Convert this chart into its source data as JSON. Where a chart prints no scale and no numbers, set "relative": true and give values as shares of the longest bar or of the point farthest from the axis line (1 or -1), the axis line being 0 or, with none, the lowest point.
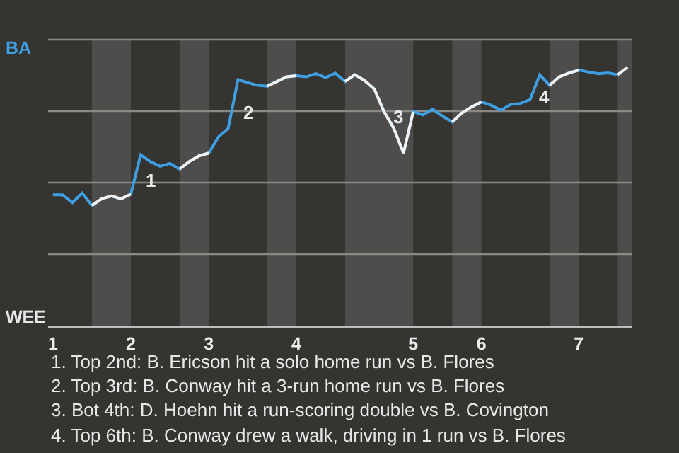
{
  "chart_data": {
    "type": "line",
    "relative": true,
    "categories": [
      "1",
      null,
      null,
      null,
      null,
      null,
      null,
      null,
      "2",
      null,
      null,
      null,
      null,
      null,
      null,
      null,
      "3",
      null,
      null,
      null,
      null,
      null,
      null,
      null,
      null,
      "4",
      null,
      null,
      null,
      null,
      null,
      null,
      null,
      null,
      null,
      null,
      null,
      "5",
      null,
      null,
      null,
      null,
      null,
      null,
      "6",
      null,
      null,
      null,
      null,
      null,
      null,
      null,
      null,
      null,
      "7",
      null,
      null,
      null,
      null,
      null
    ],
    "series": [
      {
        "color": "#3f9fe3",
        "values": [
          0.506,
          0.506,
          0.476,
          0.513,
          0.465,
          0.491,
          0.502,
          0.491,
          0.509,
          0.661,
          0.635,
          0.617,
          0.628,
          0.606,
          0.635,
          0.657,
          0.668,
          0.731,
          0.764,
          0.952,
          0.941,
          0.93,
          0.927,
          0.945,
          0.963,
          0.967,
          0.963,
          0.975,
          0.96,
          0.977,
          0.945,
          0.971,
          0.949,
          0.916,
          0.828,
          0.764,
          0.668,
          0.828,
          0.816,
          0.838,
          0.811,
          0.788,
          0.823,
          0.847,
          0.866,
          0.853,
          0.834,
          0.856,
          0.86,
          0.875,
          0.971,
          0.93,
          0.963,
          0.978,
          0.989,
          0.982,
          0.975,
          0.978,
          0.971,
          null
        ]
      },
      {
        "color": "#f2f2f2",
        "values": [
          null,
          null,
          null,
          null,
          0.465,
          0.491,
          0.502,
          0.491,
          0.509,
          null,
          null,
          null,
          null,
          0.606,
          0.635,
          0.657,
          0.668,
          null,
          null,
          null,
          null,
          null,
          0.927,
          0.945,
          0.963,
          0.967,
          null,
          null,
          null,
          null,
          0.945,
          0.971,
          0.949,
          0.916,
          0.828,
          0.764,
          0.668,
          0.828,
          null,
          null,
          null,
          0.788,
          0.823,
          0.847,
          0.866,
          null,
          null,
          null,
          null,
          null,
          null,
          0.93,
          0.963,
          0.978,
          0.989,
          null,
          null,
          null,
          0.971,
          1
        ]
      }
    ],
    "grid": true,
    "marker": "none",
    "line_style": "solid",
    "annotations": [
      "BA",
      "WEE",
      "1",
      "2",
      "3",
      "4",
      "1. Top 2nd: B. Ericson hit a solo home run vs B. Flores",
      "2. Top 3rd: B. Conway hit a 3-run home run vs B. Flores",
      "3. Bot 4th: D. Hoehn hit a run-scoring double vs B. Covington",
      "4. Top 6th: B. Conway drew a walk, driving in 1 run vs B. Flores"
    ]
  }
}
